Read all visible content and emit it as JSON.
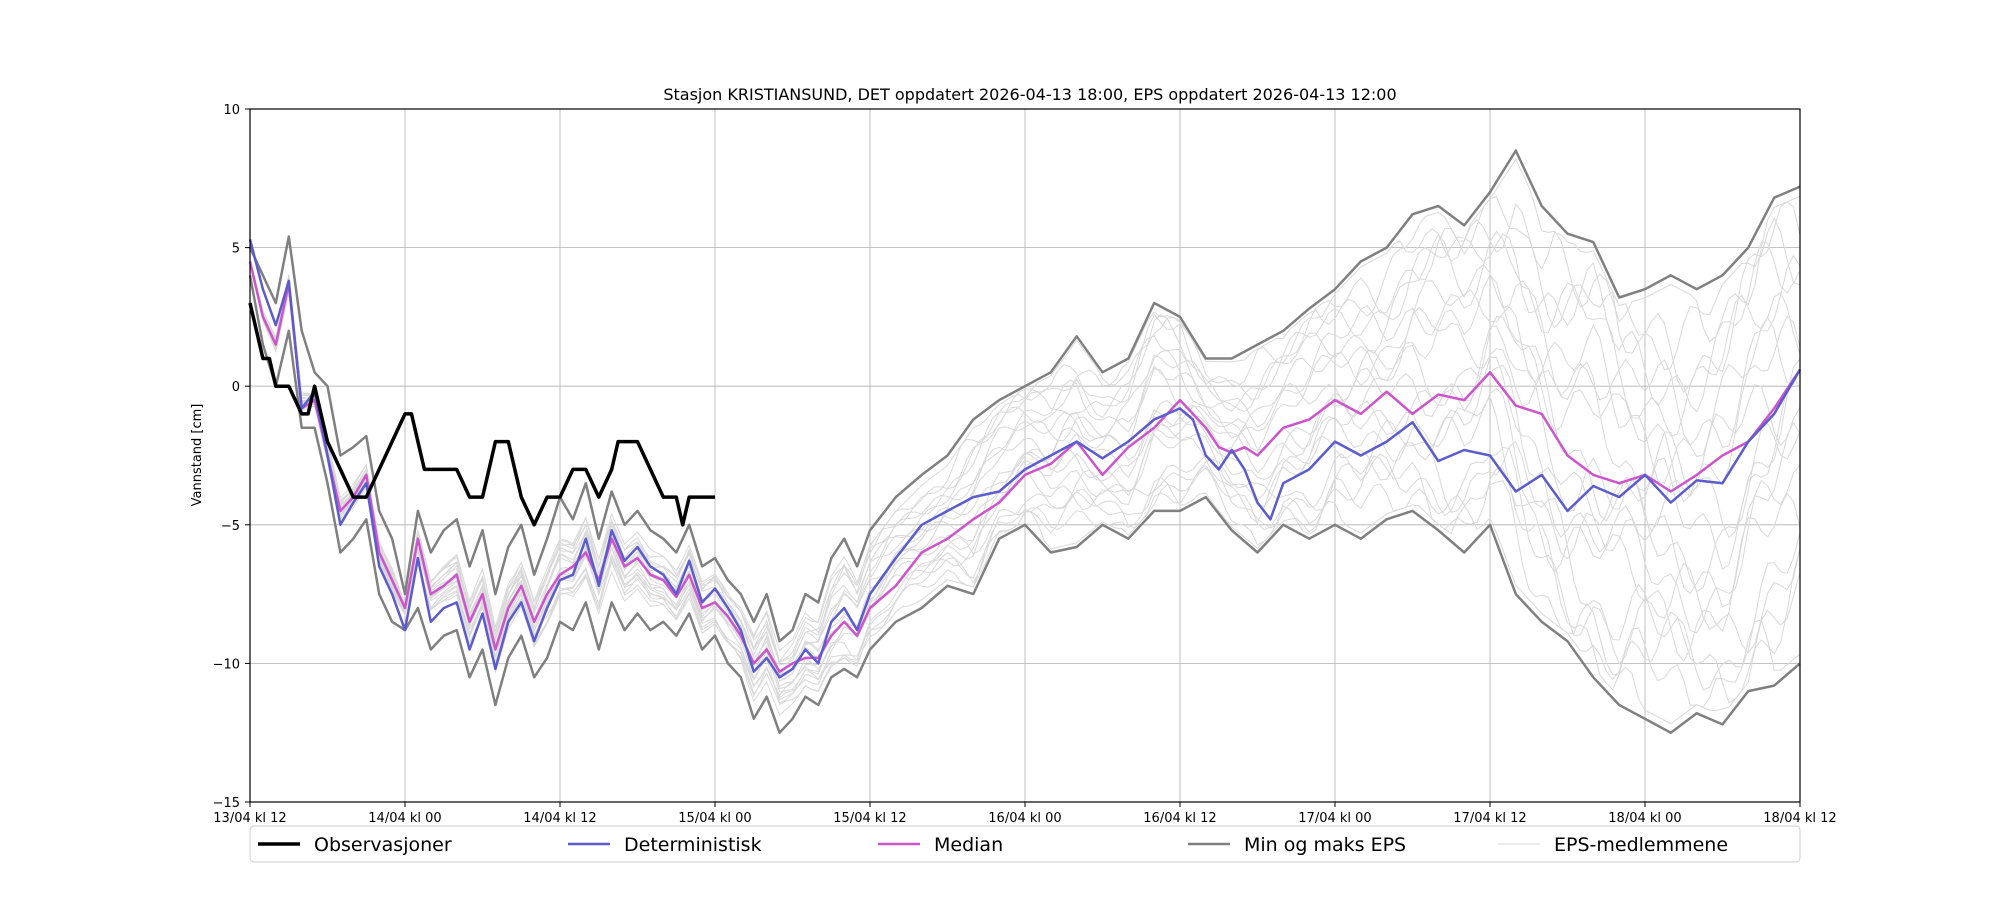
{
  "chart_data": {
    "type": "line",
    "title": "Stasjon KRISTIANSUND, DET oppdatert 2026-04-13 18:00, EPS oppdatert 2026-04-13 12:00",
    "xlabel": "",
    "ylabel": "Vannstand [cm]",
    "x_unit": "hours since 13/04 kl 12",
    "xlim": [
      0,
      120
    ],
    "ylim": [
      -15,
      10
    ],
    "x_ticks": [
      {
        "x": 0,
        "label": "13/04 kl 12"
      },
      {
        "x": 12,
        "label": "14/04 kl 00"
      },
      {
        "x": 24,
        "label": "14/04 kl 12"
      },
      {
        "x": 36,
        "label": "15/04 kl 00"
      },
      {
        "x": 48,
        "label": "15/04 kl 12"
      },
      {
        "x": 60,
        "label": "16/04 kl 00"
      },
      {
        "x": 72,
        "label": "16/04 kl 12"
      },
      {
        "x": 84,
        "label": "17/04 kl 00"
      },
      {
        "x": 96,
        "label": "17/04 kl 12"
      },
      {
        "x": 108,
        "label": "18/04 kl 00"
      },
      {
        "x": 120,
        "label": "18/04 kl 12"
      }
    ],
    "y_ticks": [
      {
        "y": 10,
        "label": "10"
      },
      {
        "y": 5,
        "label": "5"
      },
      {
        "y": 0,
        "label": "0"
      },
      {
        "y": -5,
        "label": "−5"
      },
      {
        "y": -10,
        "label": "−10"
      },
      {
        "y": -15,
        "label": "−15"
      }
    ],
    "grid": true,
    "legend": "bottom, below axes",
    "series": [
      {
        "name": "Observasjoner",
        "color": "#000000",
        "x": [
          0,
          0.5,
          1,
          1.5,
          2,
          3,
          4,
          4.5,
          5,
          5.5,
          6,
          7,
          8,
          9,
          10,
          11,
          12,
          12.5,
          13,
          13.5,
          14,
          15,
          16,
          17,
          18,
          18.5,
          19,
          20,
          21,
          22,
          23,
          24,
          25,
          26,
          27,
          28,
          28.5,
          29,
          30,
          31,
          32,
          33,
          33.5,
          34,
          35,
          36
        ],
        "values": [
          3,
          2,
          1,
          1,
          0,
          0,
          -1,
          -1,
          0,
          -1,
          -2,
          -3,
          -4,
          -4,
          -3,
          -2,
          -1,
          -1,
          -2,
          -3,
          -3,
          -3,
          -3,
          -4,
          -4,
          -3,
          -2,
          -2,
          -4,
          -5,
          -4,
          -4,
          -3,
          -3,
          -4,
          -3,
          -2,
          -2,
          -2,
          -3,
          -4,
          -4,
          -5,
          -4,
          -4,
          -4
        ]
      },
      {
        "name": "Deterministisk",
        "color": "#5c5ccc",
        "x": [
          0,
          1,
          2,
          3,
          4,
          5,
          6,
          7,
          8,
          9,
          10,
          11,
          12,
          13,
          14,
          15,
          16,
          17,
          18,
          19,
          20,
          21,
          22,
          23,
          24,
          25,
          26,
          27,
          28,
          29,
          30,
          31,
          32,
          33,
          34,
          35,
          36,
          37,
          38,
          39,
          40,
          41,
          42,
          43,
          44,
          45,
          46,
          47,
          48,
          50,
          52,
          54,
          56,
          58,
          60,
          62,
          64,
          66,
          68,
          70,
          72,
          73,
          74,
          75,
          76,
          77,
          78,
          79,
          80,
          82,
          84,
          86,
          88,
          90,
          92,
          94,
          96,
          98,
          100,
          102,
          104,
          106,
          108,
          110,
          112,
          114,
          116,
          118,
          120
        ],
        "values": [
          5.3,
          3.5,
          2.2,
          3.8,
          -0.8,
          -0.2,
          -2.5,
          -5.0,
          -4.2,
          -3.5,
          -6.5,
          -7.5,
          -8.8,
          -6.2,
          -8.5,
          -8.0,
          -7.8,
          -9.5,
          -8.2,
          -10.2,
          -8.5,
          -7.8,
          -9.2,
          -8.0,
          -7.0,
          -6.8,
          -5.5,
          -7.2,
          -5.2,
          -6.3,
          -5.8,
          -6.5,
          -6.8,
          -7.5,
          -6.3,
          -7.8,
          -7.3,
          -8.0,
          -8.8,
          -10.3,
          -9.8,
          -10.5,
          -10.2,
          -9.5,
          -10.0,
          -8.5,
          -8.0,
          -8.8,
          -7.5,
          -6.2,
          -5.0,
          -4.5,
          -4.0,
          -3.8,
          -3.0,
          -2.5,
          -2.0,
          -2.6,
          -2.0,
          -1.2,
          -0.8,
          -1.2,
          -2.5,
          -3.0,
          -2.3,
          -3.0,
          -4.2,
          -4.8,
          -3.5,
          -3.0,
          -2.0,
          -2.5,
          -2.0,
          -1.3,
          -2.7,
          -2.3,
          -2.5,
          -3.8,
          -3.2,
          -4.5,
          -3.6,
          -4.0,
          -3.2,
          -4.2,
          -3.4,
          -3.5,
          -2.0,
          -1.0,
          0.6
        ]
      },
      {
        "name": "Median",
        "color": "#cc55cc",
        "x": [
          0,
          1,
          2,
          3,
          4,
          5,
          6,
          7,
          8,
          9,
          10,
          11,
          12,
          13,
          14,
          15,
          16,
          17,
          18,
          19,
          20,
          21,
          22,
          23,
          24,
          25,
          26,
          27,
          28,
          29,
          30,
          31,
          32,
          33,
          34,
          35,
          36,
          37,
          38,
          39,
          40,
          41,
          42,
          43,
          44,
          45,
          46,
          47,
          48,
          50,
          52,
          54,
          56,
          58,
          60,
          62,
          64,
          66,
          68,
          70,
          72,
          73,
          74,
          75,
          76,
          77,
          78,
          79,
          80,
          82,
          84,
          86,
          88,
          90,
          92,
          94,
          96,
          98,
          100,
          102,
          104,
          106,
          108,
          110,
          112,
          114,
          116,
          118,
          120
        ],
        "values": [
          4.5,
          2.5,
          1.5,
          3.7,
          -0.8,
          -0.5,
          -2.5,
          -4.5,
          -4.0,
          -3.2,
          -6.0,
          -7.0,
          -8.0,
          -5.5,
          -7.5,
          -7.2,
          -6.8,
          -8.5,
          -7.5,
          -9.5,
          -8.0,
          -7.2,
          -8.5,
          -7.5,
          -6.8,
          -6.5,
          -6.0,
          -7.0,
          -5.5,
          -6.5,
          -6.2,
          -6.8,
          -7.0,
          -7.6,
          -6.8,
          -8.0,
          -7.8,
          -8.3,
          -9.0,
          -10.0,
          -9.5,
          -10.3,
          -10.0,
          -9.8,
          -9.8,
          -9.0,
          -8.5,
          -9.0,
          -8.0,
          -7.2,
          -6.0,
          -5.5,
          -4.8,
          -4.2,
          -3.2,
          -2.8,
          -2.0,
          -3.2,
          -2.2,
          -1.5,
          -0.5,
          -1.0,
          -1.5,
          -2.2,
          -2.4,
          -2.2,
          -2.5,
          -2.0,
          -1.5,
          -1.2,
          -0.5,
          -1.0,
          -0.2,
          -1.0,
          -0.3,
          -0.5,
          0.5,
          -0.7,
          -1.0,
          -2.5,
          -3.2,
          -3.5,
          -3.2,
          -3.8,
          -3.2,
          -2.5,
          -2.0,
          -0.8,
          0.6
        ]
      },
      {
        "name": "Min og maks EPS",
        "color": "#808080",
        "line": "max",
        "x": [
          0,
          1,
          2,
          3,
          4,
          5,
          6,
          7,
          8,
          9,
          10,
          11,
          12,
          13,
          14,
          15,
          16,
          17,
          18,
          19,
          20,
          21,
          22,
          23,
          24,
          25,
          26,
          27,
          28,
          29,
          30,
          31,
          32,
          33,
          34,
          35,
          36,
          37,
          38,
          39,
          40,
          41,
          42,
          43,
          44,
          45,
          46,
          47,
          48,
          50,
          52,
          54,
          56,
          58,
          60,
          62,
          64,
          66,
          68,
          70,
          72,
          74,
          76,
          78,
          80,
          82,
          84,
          86,
          88,
          90,
          92,
          94,
          96,
          98,
          100,
          102,
          104,
          106,
          108,
          110,
          112,
          114,
          116,
          118,
          120
        ],
        "values": [
          5.0,
          4.0,
          3.0,
          5.4,
          2.0,
          0.5,
          0.0,
          -2.5,
          -2.2,
          -1.8,
          -4.5,
          -5.5,
          -7.5,
          -4.5,
          -6.0,
          -5.2,
          -4.8,
          -6.5,
          -5.2,
          -7.5,
          -5.8,
          -5.0,
          -6.8,
          -5.5,
          -4.0,
          -4.8,
          -3.5,
          -5.5,
          -3.8,
          -5.0,
          -4.5,
          -5.2,
          -5.5,
          -6.0,
          -5.0,
          -6.5,
          -6.2,
          -7.0,
          -7.5,
          -8.5,
          -7.5,
          -9.2,
          -8.8,
          -7.5,
          -7.8,
          -6.2,
          -5.5,
          -6.5,
          -5.2,
          -4.0,
          -3.2,
          -2.5,
          -1.2,
          -0.5,
          0.0,
          0.5,
          1.8,
          0.5,
          1.0,
          3.0,
          2.5,
          1.0,
          1.0,
          1.5,
          2.0,
          2.8,
          3.5,
          4.5,
          5.0,
          6.2,
          6.5,
          5.8,
          7.0,
          8.5,
          6.5,
          5.5,
          5.2,
          3.2,
          3.5,
          4.0,
          3.5,
          4.0,
          5.0,
          6.8,
          7.2
        ]
      },
      {
        "name": "Min og maks EPS (min)",
        "color": "#808080",
        "line": "min",
        "x": [
          0,
          1,
          2,
          3,
          4,
          5,
          6,
          7,
          8,
          9,
          10,
          11,
          12,
          13,
          14,
          15,
          16,
          17,
          18,
          19,
          20,
          21,
          22,
          23,
          24,
          25,
          26,
          27,
          28,
          29,
          30,
          31,
          32,
          33,
          34,
          35,
          36,
          37,
          38,
          39,
          40,
          41,
          42,
          43,
          44,
          45,
          46,
          47,
          48,
          50,
          52,
          54,
          56,
          58,
          60,
          62,
          64,
          66,
          68,
          70,
          72,
          74,
          76,
          78,
          80,
          82,
          84,
          86,
          88,
          90,
          92,
          94,
          96,
          98,
          100,
          102,
          104,
          106,
          108,
          110,
          112,
          114,
          116,
          118,
          120
        ],
        "values": [
          4.0,
          1.5,
          0.0,
          2.0,
          -1.5,
          -1.5,
          -3.5,
          -6.0,
          -5.5,
          -4.8,
          -7.5,
          -8.5,
          -8.8,
          -8.0,
          -9.5,
          -9.0,
          -8.8,
          -10.5,
          -9.5,
          -11.5,
          -9.8,
          -9.0,
          -10.5,
          -9.8,
          -8.5,
          -8.8,
          -7.8,
          -9.5,
          -7.8,
          -8.8,
          -8.2,
          -8.8,
          -8.5,
          -9.0,
          -8.2,
          -9.5,
          -9.0,
          -10.0,
          -10.5,
          -12.0,
          -11.2,
          -12.5,
          -12.0,
          -11.2,
          -11.5,
          -10.5,
          -10.2,
          -10.5,
          -9.5,
          -8.5,
          -8.0,
          -7.2,
          -7.5,
          -5.5,
          -5.0,
          -6.0,
          -5.8,
          -5.0,
          -5.5,
          -4.5,
          -4.5,
          -4.0,
          -5.2,
          -6.0,
          -5.0,
          -5.5,
          -5.0,
          -5.5,
          -4.8,
          -4.5,
          -5.2,
          -6.0,
          -5.0,
          -7.5,
          -8.5,
          -9.2,
          -10.5,
          -11.5,
          -12.0,
          -12.5,
          -11.8,
          -12.2,
          -11.0,
          -10.8,
          -10.0
        ]
      }
    ],
    "ensemble": {
      "name": "EPS-medlemmene",
      "color": "#d9d9d9",
      "member_count": 20
    },
    "legend_entries": [
      {
        "label": "Observasjoner",
        "color": "#000000",
        "width": 3.5
      },
      {
        "label": "Deterministisk",
        "color": "#5c5ccc",
        "width": 2.5
      },
      {
        "label": "Median",
        "color": "#cc55cc",
        "width": 2.5
      },
      {
        "label": "Min og maks EPS",
        "color": "#808080",
        "width": 2.5
      },
      {
        "label": "EPS-medlemmene",
        "color": "#d9d9d9",
        "width": 1
      }
    ]
  }
}
